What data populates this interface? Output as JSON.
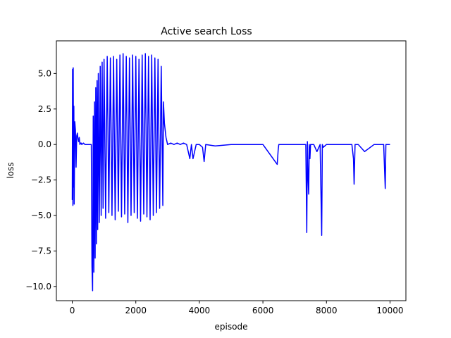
{
  "chart_data": {
    "type": "line",
    "title": "Active search Loss",
    "xlabel": "episode",
    "ylabel": "loss",
    "xlim": [
      -500,
      10500
    ],
    "ylim": [
      -11.0,
      7.3
    ],
    "xticks": [
      0,
      2000,
      4000,
      6000,
      8000,
      10000
    ],
    "yticks": [
      -10.0,
      -7.5,
      -5.0,
      -2.5,
      0.0,
      2.5,
      5.0
    ],
    "xtick_labels": [
      "0",
      "2000",
      "4000",
      "6000",
      "8000",
      "10000"
    ],
    "ytick_labels": [
      "−10.0",
      "−7.5",
      "−5.0",
      "−2.5",
      "0.0",
      "2.5",
      "5.0"
    ],
    "grid": false,
    "series_color": "#0000ff",
    "series": [
      {
        "x": [
          0,
          10,
          20,
          30,
          40,
          50,
          60,
          80,
          100,
          120,
          140,
          160,
          180,
          200,
          220,
          240,
          260,
          280,
          300,
          350,
          400,
          450,
          500,
          560,
          600,
          620,
          640,
          660,
          680,
          700,
          720,
          740,
          760,
          780,
          800,
          820,
          850,
          880,
          910,
          940,
          970,
          1000,
          1050,
          1100,
          1150,
          1200,
          1250,
          1300,
          1350,
          1400,
          1450,
          1500,
          1550,
          1600,
          1650,
          1700,
          1750,
          1800,
          1850,
          1900,
          1950,
          2000,
          2050,
          2100,
          2150,
          2200,
          2250,
          2300,
          2350,
          2400,
          2450,
          2500,
          2550,
          2600,
          2650,
          2700,
          2750,
          2800,
          2850,
          2870,
          2900,
          2950,
          3000,
          3100,
          3200,
          3300,
          3400,
          3500,
          3600,
          3700,
          3750,
          3800,
          3900,
          4000,
          4100,
          4150,
          4200,
          4500,
          5000,
          5500,
          6000,
          6450,
          6480,
          6500,
          6600,
          7000,
          7350,
          7380,
          7400,
          7420,
          7440,
          7460,
          7480,
          7500,
          7600,
          7700,
          7800,
          7850,
          7870,
          7900,
          8000,
          8500,
          8800,
          8850,
          8870,
          8900,
          9000,
          9200,
          9500,
          9800,
          9850,
          9870,
          9900,
          10000
        ],
        "y": [
          -3.9,
          5.3,
          -4.3,
          5.4,
          -3.0,
          2.7,
          -4.2,
          1.6,
          1.0,
          -1.6,
          0.6,
          0.8,
          0.4,
          0.2,
          0.5,
          0.0,
          0.1,
          0.1,
          0.0,
          0.1,
          0.0,
          0.0,
          0.0,
          0.0,
          0.0,
          -8.6,
          -10.3,
          2.0,
          -9.0,
          3.0,
          -8.0,
          4.0,
          -7.0,
          4.5,
          -6.0,
          5.0,
          -5.5,
          5.5,
          -5.0,
          5.8,
          -4.5,
          6.0,
          -5.2,
          6.2,
          -4.8,
          6.1,
          -5.0,
          6.2,
          -5.3,
          6.0,
          -4.7,
          6.3,
          -5.1,
          6.4,
          -4.9,
          6.2,
          -5.5,
          6.1,
          -5.0,
          6.3,
          -4.8,
          6.2,
          -5.2,
          6.0,
          -5.4,
          6.3,
          -4.9,
          6.4,
          -5.1,
          6.2,
          -5.3,
          6.3,
          -5.0,
          6.1,
          -4.8,
          6.0,
          -4.5,
          5.5,
          -4.3,
          3.0,
          1.5,
          0.5,
          0.0,
          0.1,
          0.0,
          0.1,
          0.0,
          0.1,
          0.0,
          -1.0,
          0.0,
          -1.0,
          0.0,
          0.0,
          -0.2,
          -1.2,
          0.0,
          -0.1,
          0.0,
          0.0,
          0.0,
          -1.4,
          -0.4,
          0.0,
          0.0,
          0.0,
          0.0,
          -6.2,
          0.2,
          -2.2,
          -3.5,
          0.0,
          -1.0,
          0.0,
          0.0,
          -0.5,
          0.0,
          -6.4,
          0.0,
          -0.2,
          0.0,
          0.0,
          0.0,
          -1.0,
          -2.8,
          0.0,
          0.0,
          -0.5,
          0.0,
          0.0,
          -3.1,
          0.0,
          0.0,
          0.0
        ]
      }
    ]
  }
}
